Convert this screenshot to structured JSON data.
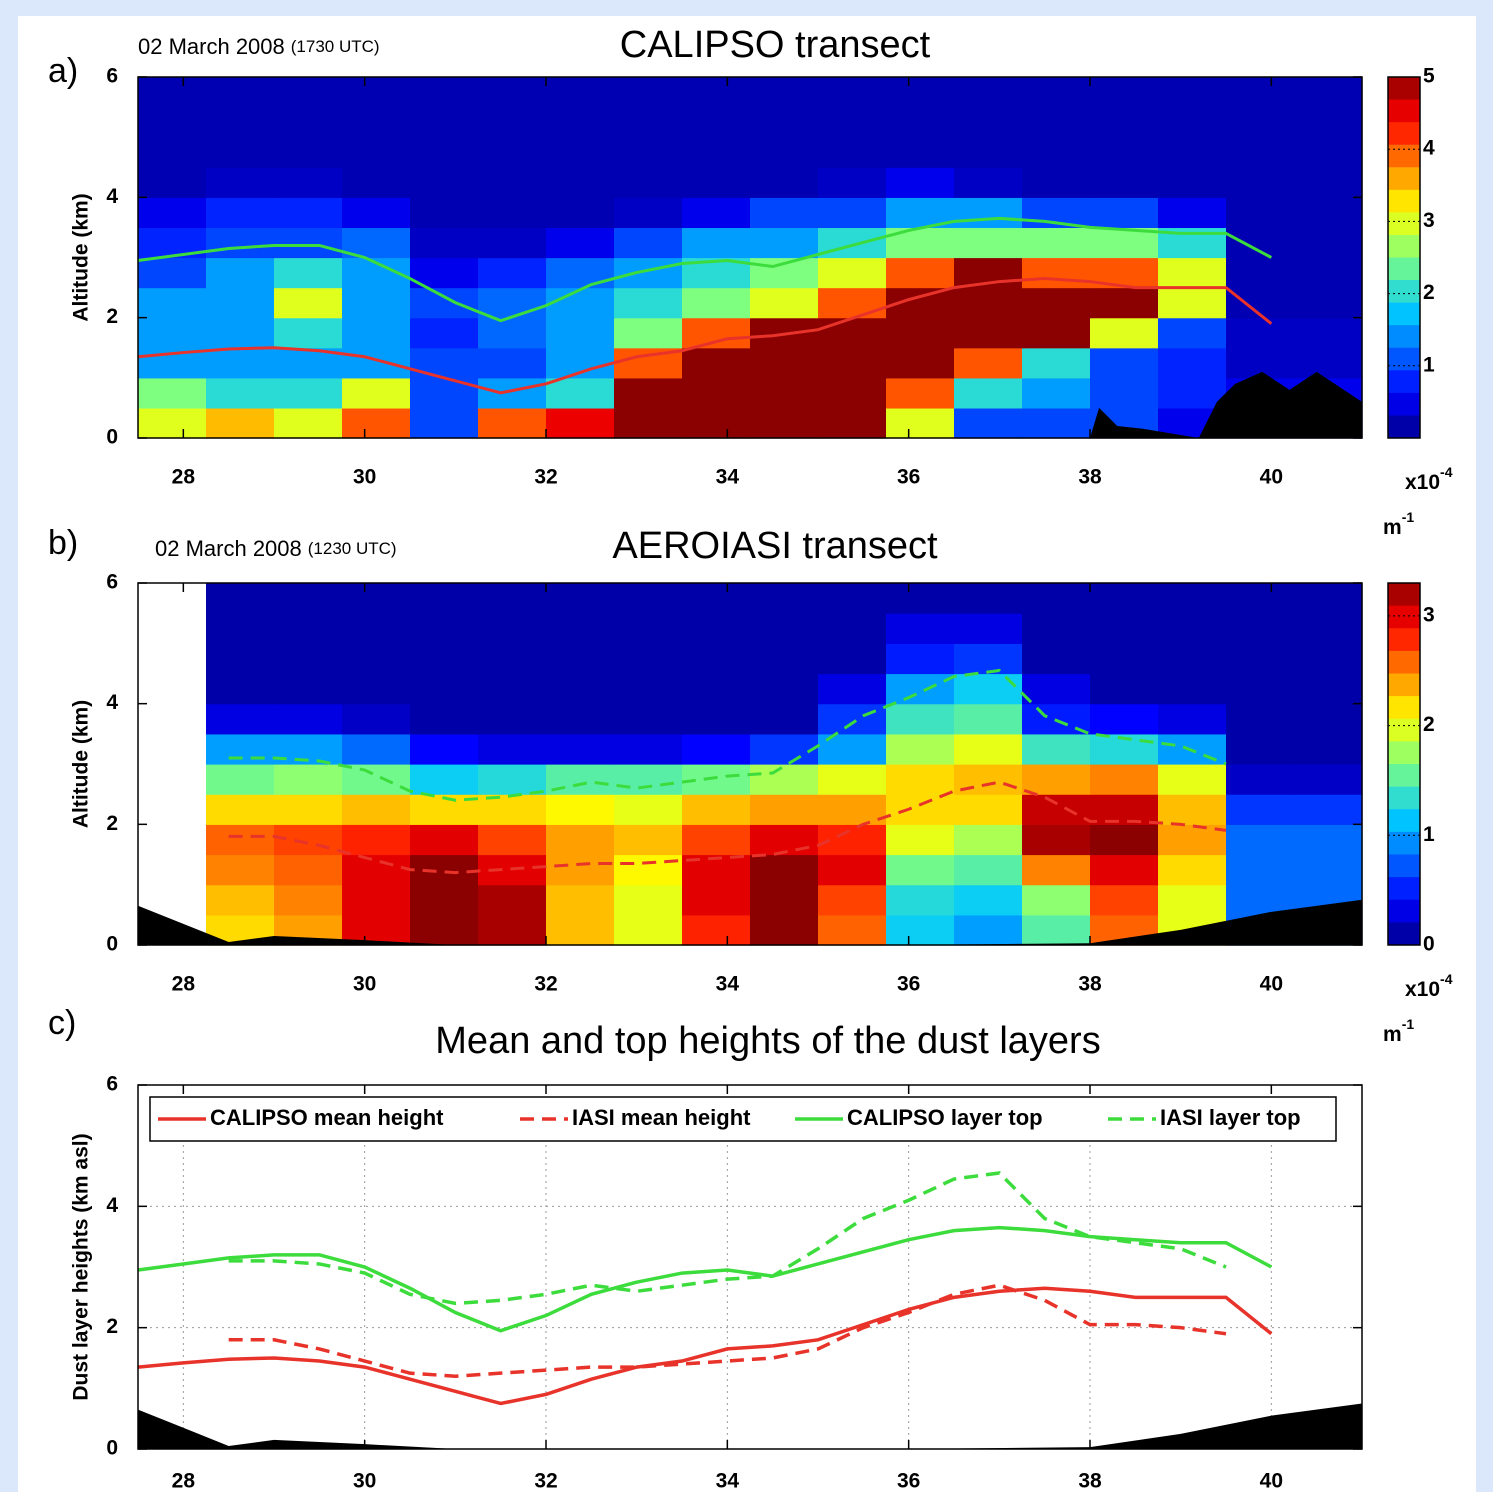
{
  "chart_data": [
    {
      "type": "heatmap",
      "panel_label": "a)",
      "date": "02 March 2008",
      "time": "(1730 UTC)",
      "title": "CALIPSO transect",
      "ylabel": "Altitude (km)",
      "xlim": [
        27.5,
        41
      ],
      "ylim": [
        0,
        6
      ],
      "xticks": [
        28,
        30,
        32,
        34,
        36,
        38,
        40
      ],
      "yticks": [
        0,
        2,
        4,
        6
      ],
      "x_edges": [
        27.5,
        28.25,
        29,
        29.75,
        30.5,
        31.25,
        32,
        32.75,
        33.5,
        34.25,
        35,
        35.75,
        36.5,
        37.25,
        38,
        38.75,
        39.5,
        40.25,
        41
      ],
      "y_edges": [
        0,
        0.5,
        1,
        1.5,
        2,
        2.5,
        3,
        3.5,
        4,
        4.5,
        5,
        5.5,
        6
      ],
      "z": [
        [
          3,
          3.5,
          3,
          4,
          1,
          4,
          4.5,
          5,
          5,
          5,
          5,
          3,
          1,
          1,
          1,
          0.5,
          1,
          1
        ],
        [
          2.5,
          2,
          2,
          3,
          1,
          1.5,
          2,
          5,
          5,
          5,
          5,
          4,
          2,
          1.5,
          1,
          0.8,
          0.5,
          0.5
        ],
        [
          1.5,
          1.5,
          1.5,
          1.5,
          1,
          1,
          1.5,
          4,
          5,
          5,
          5,
          5,
          4,
          2,
          1,
          0.8,
          0.3,
          0.3
        ],
        [
          1.5,
          1.5,
          2,
          1.5,
          0.8,
          1.2,
          1.5,
          2.5,
          4,
          5,
          5,
          5,
          5,
          5,
          3,
          1,
          0.3,
          0.3
        ],
        [
          1.5,
          1.5,
          3,
          1.5,
          1,
          1.2,
          1.5,
          2,
          2.5,
          3,
          4,
          5,
          5,
          5,
          5,
          3,
          0.2,
          0.2
        ],
        [
          1,
          1.5,
          2,
          1.5,
          0.5,
          0.8,
          1.2,
          1.5,
          2,
          2.5,
          3,
          4,
          5,
          4,
          4,
          3,
          0.2,
          0.2
        ],
        [
          0.8,
          1,
          1,
          1.2,
          0.3,
          0.3,
          0.5,
          1,
          1.5,
          1.5,
          2,
          2.5,
          2.5,
          2.5,
          2.5,
          2,
          0.2,
          0.2
        ],
        [
          0.5,
          0.8,
          0.8,
          0.5,
          0.2,
          0.2,
          0.2,
          0.3,
          0.5,
          1,
          1,
          1.5,
          1.5,
          1,
          1,
          0.5,
          0.2,
          0.2
        ],
        [
          0.2,
          0.3,
          0.3,
          0.2,
          0.2,
          0.2,
          0.2,
          0.2,
          0.2,
          0.2,
          0.3,
          0.5,
          0.3,
          0.2,
          0.2,
          0.2,
          0.2,
          0.2
        ],
        [
          0.2,
          0.2,
          0.2,
          0.2,
          0.2,
          0.2,
          0.2,
          0.2,
          0.2,
          0.2,
          0.2,
          0.2,
          0.2,
          0.2,
          0.2,
          0.2,
          0.2,
          0.2
        ],
        [
          0.2,
          0.2,
          0.2,
          0.2,
          0.2,
          0.2,
          0.2,
          0.2,
          0.2,
          0.2,
          0.2,
          0.2,
          0.2,
          0.2,
          0.2,
          0.2,
          0.2,
          0.2
        ],
        [
          0.2,
          0.2,
          0.2,
          0.2,
          0.2,
          0.2,
          0.2,
          0.2,
          0.2,
          0.2,
          0.2,
          0.2,
          0.2,
          0.2,
          0.2,
          0.2,
          0.2,
          0.2
        ]
      ],
      "zlim": [
        0,
        5
      ],
      "zticks": [
        1,
        2,
        3,
        4,
        5
      ],
      "colorbar_unit": {
        "base": "x10",
        "exponent": "-4"
      },
      "colorbar_unit2": {
        "base": "m",
        "exponent": "-1"
      },
      "line_x": [
        27.5,
        28,
        28.5,
        29,
        29.5,
        30,
        30.5,
        31,
        31.5,
        32,
        32.5,
        33,
        33.5,
        34,
        34.5,
        35,
        35.5,
        36,
        36.5,
        37,
        37.5,
        38,
        38.5,
        39,
        39.5,
        40,
        40.5,
        41
      ],
      "overlays": [
        {
          "color": "#e8332a",
          "dashed": false,
          "values": [
            1.35,
            1.42,
            1.48,
            1.5,
            1.45,
            1.35,
            1.15,
            0.95,
            0.75,
            0.9,
            1.15,
            1.35,
            1.45,
            1.65,
            1.7,
            1.8,
            2.05,
            2.3,
            2.5,
            2.6,
            2.65,
            2.6,
            2.5,
            2.5,
            2.5,
            1.9,
            null,
            null
          ]
        },
        {
          "color": "#3ddc3d",
          "dashed": false,
          "values": [
            2.95,
            3.05,
            3.15,
            3.2,
            3.2,
            3.0,
            2.65,
            2.25,
            1.95,
            2.2,
            2.55,
            2.75,
            2.9,
            2.95,
            2.85,
            3.05,
            3.25,
            3.45,
            3.6,
            3.65,
            3.6,
            3.5,
            3.45,
            3.4,
            3.4,
            3.0,
            null,
            null
          ]
        }
      ],
      "terrain": {
        "x": [
          27.5,
          38,
          38.1,
          38.3,
          38.6,
          39.2,
          39.4,
          39.6,
          39.9,
          40.2,
          40.5,
          40.8,
          41
        ],
        "values": [
          0,
          0,
          0.5,
          0.2,
          0.15,
          0,
          0.6,
          0.9,
          1.1,
          0.8,
          1.1,
          0.8,
          0.6
        ]
      }
    },
    {
      "type": "heatmap",
      "panel_label": "b)",
      "date": "02 March 2008",
      "time": "(1230 UTC)",
      "title": "AEROIASI transect",
      "ylabel": "Altitude (km)",
      "xlim": [
        27.5,
        41
      ],
      "ylim": [
        0,
        6
      ],
      "xticks": [
        28,
        30,
        32,
        34,
        36,
        38,
        40
      ],
      "yticks": [
        0,
        2,
        4,
        6
      ],
      "x_edges": [
        27.5,
        28.25,
        29,
        29.75,
        30.5,
        31.25,
        32,
        32.75,
        33.5,
        34.25,
        35,
        35.75,
        36.5,
        37.25,
        38,
        38.75,
        39.5,
        40.25,
        41
      ],
      "y_edges": [
        0,
        0.5,
        1,
        1.5,
        2,
        2.5,
        3,
        3.5,
        4,
        4.5,
        5,
        5.5,
        6
      ],
      "z": [
        [
          null,
          2.2,
          2.4,
          3,
          3.3,
          3.2,
          2.3,
          2,
          2.8,
          3.3,
          2.6,
          1.2,
          1,
          1.5,
          2.6,
          2,
          0.8,
          0.8
        ],
        [
          null,
          2.3,
          2.5,
          3,
          3.3,
          3.2,
          2.3,
          2,
          3,
          3.3,
          2.7,
          1.3,
          1.2,
          1.7,
          2.7,
          2,
          0.8,
          0.8
        ],
        [
          null,
          2.5,
          2.6,
          3,
          3.3,
          3,
          2.4,
          2.1,
          3,
          3.3,
          3,
          1.6,
          1.5,
          2.5,
          3,
          2.2,
          0.8,
          0.8
        ],
        [
          null,
          2.6,
          2.7,
          2.8,
          3,
          2.7,
          2.4,
          2.3,
          2.7,
          3,
          2.8,
          2,
          1.8,
          3.2,
          3.3,
          2.4,
          0.8,
          0.8
        ],
        [
          null,
          2.2,
          2.2,
          2.3,
          2.2,
          2.2,
          2.1,
          2,
          2.3,
          2.4,
          2.4,
          2.2,
          2.2,
          3.1,
          3.1,
          2.3,
          0.6,
          0.6
        ],
        [
          null,
          1.6,
          1.7,
          1.6,
          1.2,
          1.3,
          1.5,
          1.5,
          1.6,
          1.8,
          2,
          2.2,
          2.3,
          2.4,
          2.5,
          2,
          0.2,
          0.2
        ],
        [
          null,
          1,
          1,
          0.8,
          0.4,
          0.3,
          0.3,
          0.3,
          0.4,
          0.6,
          1,
          1.8,
          2,
          1.4,
          1.3,
          1,
          0.1,
          0.1
        ],
        [
          null,
          0.3,
          0.3,
          0.2,
          0.1,
          0.1,
          0.1,
          0.1,
          0.1,
          0.1,
          0.6,
          1.4,
          1.5,
          0.5,
          0.4,
          0.3,
          0.1,
          0.1
        ],
        [
          null,
          0.1,
          0.1,
          0.1,
          0.1,
          0.1,
          0.1,
          0.1,
          0.1,
          0.1,
          0.3,
          1,
          1.2,
          0.3,
          0.1,
          0.1,
          0.1,
          0.1
        ],
        [
          null,
          0.1,
          0.1,
          0.1,
          0.1,
          0.1,
          0.1,
          0.1,
          0.1,
          0.1,
          0.1,
          0.5,
          0.6,
          0.1,
          0.1,
          0.1,
          0.1,
          0.1
        ],
        [
          null,
          0.1,
          0.1,
          0.1,
          0.1,
          0.1,
          0.1,
          0.1,
          0.1,
          0.1,
          0.1,
          0.3,
          0.3,
          0.1,
          0.1,
          0.1,
          0.1,
          0.1
        ],
        [
          null,
          0.1,
          0.1,
          0.1,
          0.1,
          0.1,
          0.1,
          0.1,
          0.1,
          0.1,
          0.1,
          0.1,
          0.1,
          0.1,
          0.1,
          0.1,
          0.1,
          0.1
        ]
      ],
      "zlim": [
        0,
        3.3
      ],
      "zticks": [
        0,
        1,
        2,
        3
      ],
      "colorbar_unit": {
        "base": "x10",
        "exponent": "-4"
      },
      "colorbar_unit2": {
        "base": "m",
        "exponent": "-1"
      },
      "line_x": [
        27.5,
        28,
        28.5,
        29,
        29.5,
        30,
        30.5,
        31,
        31.5,
        32,
        32.5,
        33,
        33.5,
        34,
        34.5,
        35,
        35.5,
        36,
        36.5,
        37,
        37.5,
        38,
        38.5,
        39,
        39.5,
        40,
        40.5,
        41
      ],
      "overlays": [
        {
          "color": "#e8332a",
          "dashed": true,
          "values": [
            null,
            null,
            1.8,
            1.8,
            1.65,
            1.45,
            1.25,
            1.2,
            1.25,
            1.3,
            1.35,
            1.35,
            1.4,
            1.45,
            1.5,
            1.65,
            2.0,
            2.25,
            2.55,
            2.7,
            2.45,
            2.05,
            2.05,
            2.0,
            1.9,
            null,
            null,
            null
          ]
        },
        {
          "color": "#3ddc3d",
          "dashed": true,
          "values": [
            null,
            null,
            3.1,
            3.1,
            3.05,
            2.9,
            2.55,
            2.4,
            2.45,
            2.55,
            2.7,
            2.6,
            2.7,
            2.8,
            2.85,
            3.3,
            3.8,
            4.1,
            4.45,
            4.55,
            3.8,
            3.5,
            3.4,
            3.3,
            3.0,
            null,
            null,
            null
          ]
        }
      ],
      "terrain": {
        "x": [
          27.5,
          28,
          28.5,
          29,
          30,
          31,
          36,
          38,
          39,
          40,
          41
        ],
        "values": [
          0.65,
          0.35,
          0.05,
          0.15,
          0.08,
          0,
          0,
          0.03,
          0.25,
          0.55,
          0.75
        ]
      }
    },
    {
      "type": "line",
      "panel_label": "c)",
      "title": "Mean and top heights of the dust layers",
      "ylabel": "Dust layer heights (km asl)",
      "xlim": [
        27.5,
        41
      ],
      "ylim": [
        0,
        6
      ],
      "xticks": [
        28,
        30,
        32,
        34,
        36,
        38,
        40
      ],
      "yticks": [
        0,
        2,
        4,
        6
      ],
      "grid": true,
      "legend": "top",
      "x": [
        27.5,
        28,
        28.5,
        29,
        29.5,
        30,
        30.5,
        31,
        31.5,
        32,
        32.5,
        33,
        33.5,
        34,
        34.5,
        35,
        35.5,
        36,
        36.5,
        37,
        37.5,
        38,
        38.5,
        39,
        39.5,
        40,
        40.5,
        41
      ],
      "series": [
        {
          "name": "CALIPSO mean height",
          "color": "#e8332a",
          "dashed": false,
          "values": [
            1.35,
            1.42,
            1.48,
            1.5,
            1.45,
            1.35,
            1.15,
            0.95,
            0.75,
            0.9,
            1.15,
            1.35,
            1.45,
            1.65,
            1.7,
            1.8,
            2.05,
            2.3,
            2.5,
            2.6,
            2.65,
            2.6,
            2.5,
            2.5,
            2.5,
            1.9,
            null,
            null
          ]
        },
        {
          "name": "IASI mean height",
          "color": "#e8332a",
          "dashed": true,
          "values": [
            null,
            null,
            1.8,
            1.8,
            1.65,
            1.45,
            1.25,
            1.2,
            1.25,
            1.3,
            1.35,
            1.35,
            1.4,
            1.45,
            1.5,
            1.65,
            2.0,
            2.25,
            2.55,
            2.7,
            2.45,
            2.05,
            2.05,
            2.0,
            1.9,
            null,
            null,
            null
          ]
        },
        {
          "name": "CALIPSO layer top",
          "color": "#3ddc3d",
          "dashed": false,
          "values": [
            2.95,
            3.05,
            3.15,
            3.2,
            3.2,
            3.0,
            2.65,
            2.25,
            1.95,
            2.2,
            2.55,
            2.75,
            2.9,
            2.95,
            2.85,
            3.05,
            3.25,
            3.45,
            3.6,
            3.65,
            3.6,
            3.5,
            3.45,
            3.4,
            3.4,
            3.0,
            null,
            null
          ]
        },
        {
          "name": "IASI layer top",
          "color": "#3ddc3d",
          "dashed": true,
          "values": [
            null,
            null,
            3.1,
            3.1,
            3.05,
            2.9,
            2.55,
            2.4,
            2.45,
            2.55,
            2.7,
            2.6,
            2.7,
            2.8,
            2.85,
            3.3,
            3.8,
            4.1,
            4.45,
            4.55,
            3.8,
            3.5,
            3.4,
            3.3,
            3.0,
            null,
            null,
            null
          ]
        }
      ],
      "terrain": {
        "x": [
          27.5,
          28,
          28.5,
          29,
          30,
          31,
          36,
          38,
          39,
          40,
          41
        ],
        "values": [
          0.65,
          0.35,
          0.05,
          0.15,
          0.08,
          0,
          0,
          0.03,
          0.25,
          0.55,
          0.75
        ]
      }
    }
  ]
}
